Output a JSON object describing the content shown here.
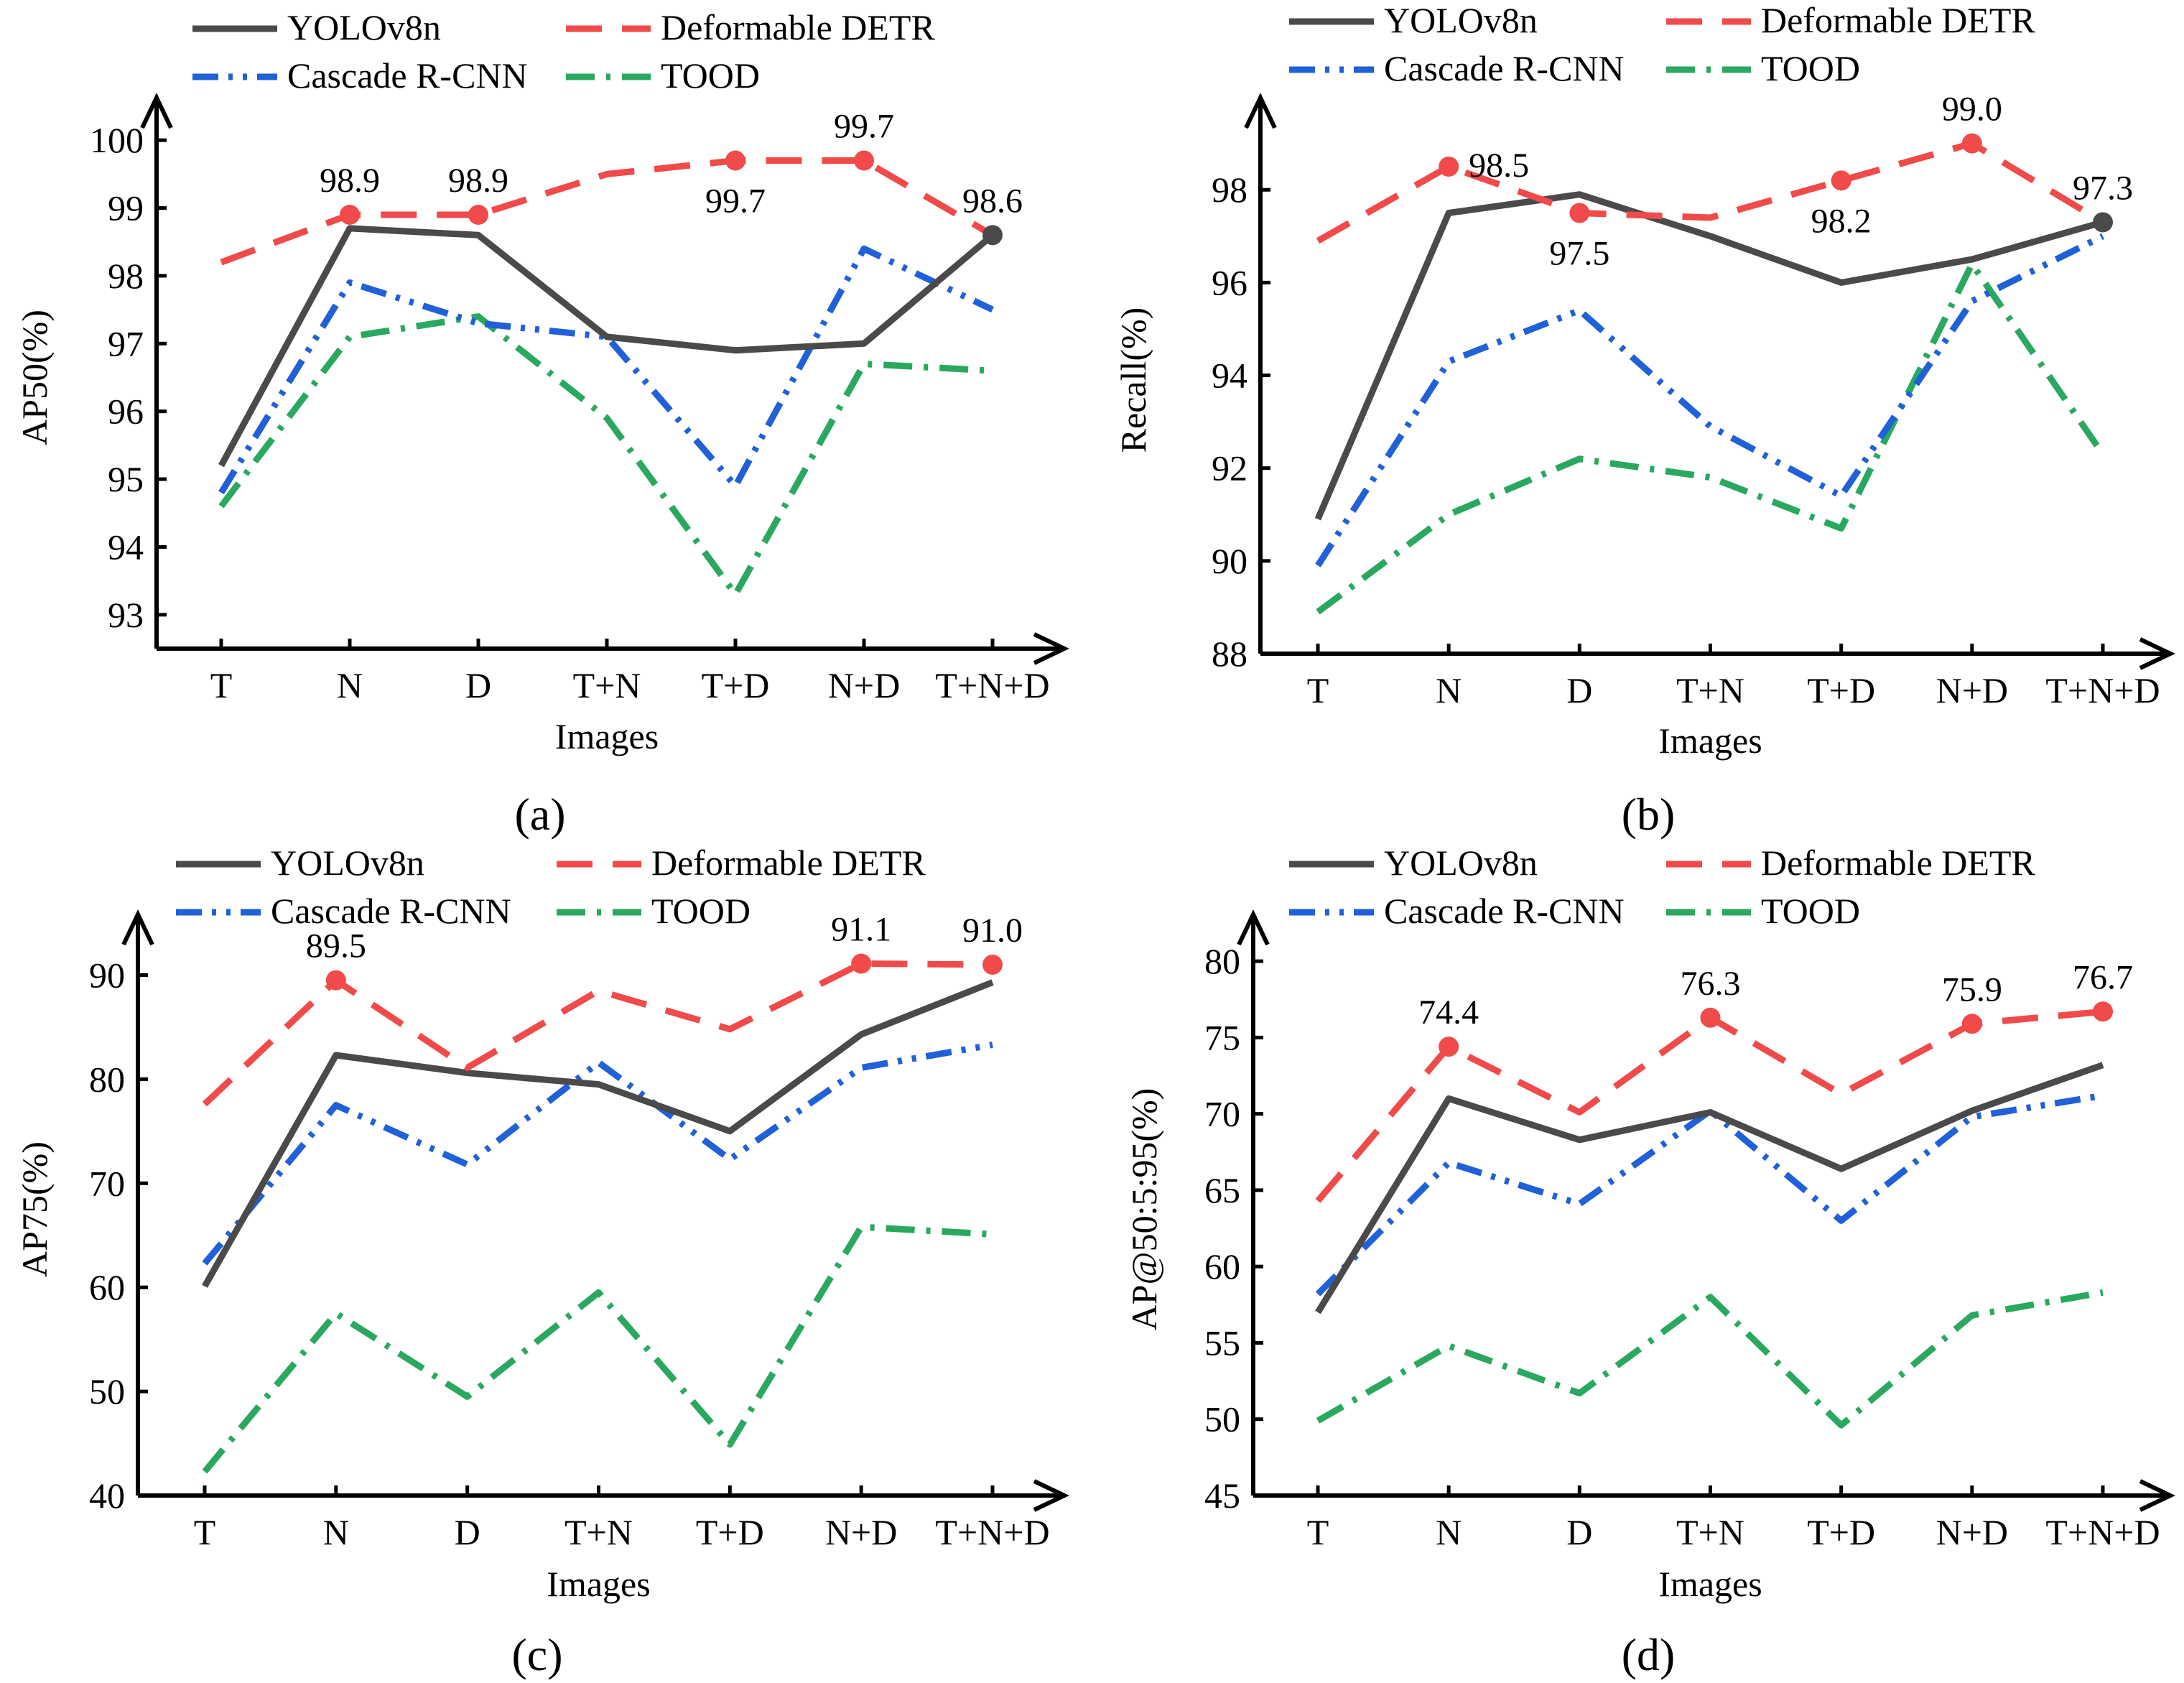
{
  "styles": {
    "YOLOv8n": {
      "color": "#4a4a4a",
      "dash": ""
    },
    "Deformable DETR": {
      "color": "#f04a4a",
      "dash": "50 28"
    },
    "Cascade R-CNN": {
      "color": "#2060d8",
      "dash": "36 14 6 14 6 14"
    },
    "TOOD": {
      "color": "#2aa860",
      "dash": "40 16 6 16"
    }
  },
  "chart_data": [
    {
      "type": "line",
      "panel_label": "(a)",
      "ylabel": "AP50(%)",
      "xlabel": "Images",
      "categories": [
        "T",
        "N",
        "D",
        "T+N",
        "T+D",
        "N+D",
        "T+N+D"
      ],
      "yticks": [
        93,
        94,
        95,
        96,
        97,
        98,
        99,
        100
      ],
      "ylim": [
        92.5,
        100.5
      ],
      "legend": [
        "YOLOv8n",
        "Deformable DETR",
        "Cascade R-CNN",
        "TOOD"
      ],
      "series": [
        {
          "name": "YOLOv8n",
          "values": [
            95.2,
            98.7,
            98.6,
            97.1,
            96.9,
            97.0,
            98.6
          ]
        },
        {
          "name": "Deformable DETR",
          "values": [
            98.2,
            98.9,
            98.9,
            99.5,
            99.7,
            99.7,
            98.6
          ]
        },
        {
          "name": "Cascade R-CNN",
          "values": [
            94.8,
            97.9,
            97.3,
            97.1,
            94.9,
            98.4,
            97.5
          ]
        },
        {
          "name": "TOOD",
          "values": [
            94.6,
            97.1,
            97.4,
            95.9,
            93.3,
            96.7,
            96.6
          ]
        }
      ],
      "markers": [
        {
          "series": "Deformable DETR",
          "index": 1,
          "label": "98.9",
          "pos": "above"
        },
        {
          "series": "Deformable DETR",
          "index": 2,
          "label": "98.9",
          "pos": "above"
        },
        {
          "series": "Deformable DETR",
          "index": 4,
          "label": "99.7",
          "pos": "below"
        },
        {
          "series": "Deformable DETR",
          "index": 5,
          "label": "99.7",
          "pos": "above"
        },
        {
          "series": "YOLOv8n",
          "index": 6,
          "label": "98.6",
          "pos": "above"
        }
      ]
    },
    {
      "type": "line",
      "panel_label": "(b)",
      "ylabel": "Recall(%)",
      "xlabel": "Images",
      "categories": [
        "T",
        "N",
        "D",
        "T+N",
        "T+D",
        "N+D",
        "T+N+D"
      ],
      "yticks": [
        88,
        90,
        92,
        94,
        96,
        98
      ],
      "ylim": [
        88,
        99.8
      ],
      "legend": [
        "YOLOv8n",
        "Deformable DETR",
        "Cascade R-CNN",
        "TOOD"
      ],
      "series": [
        {
          "name": "YOLOv8n",
          "values": [
            90.9,
            97.5,
            97.9,
            97.0,
            96.0,
            96.5,
            97.3
          ]
        },
        {
          "name": "Deformable DETR",
          "values": [
            96.9,
            98.5,
            97.5,
            97.4,
            98.2,
            99.0,
            97.3
          ]
        },
        {
          "name": "Cascade R-CNN",
          "values": [
            89.9,
            94.3,
            95.4,
            92.9,
            91.4,
            95.6,
            97.0
          ]
        },
        {
          "name": "TOOD",
          "values": [
            88.9,
            91.0,
            92.2,
            91.8,
            90.7,
            96.4,
            92.3
          ]
        }
      ],
      "markers": [
        {
          "series": "Deformable DETR",
          "index": 1,
          "label": "98.5",
          "pos": "right"
        },
        {
          "series": "Deformable DETR",
          "index": 2,
          "label": "97.5",
          "pos": "below"
        },
        {
          "series": "Deformable DETR",
          "index": 4,
          "label": "98.2",
          "pos": "below"
        },
        {
          "series": "Deformable DETR",
          "index": 5,
          "label": "99.0",
          "pos": "above"
        },
        {
          "series": "YOLOv8n",
          "index": 6,
          "label": "97.3",
          "pos": "above"
        }
      ]
    },
    {
      "type": "line",
      "panel_label": "(c)",
      "ylabel": "AP75(%)",
      "xlabel": "Images",
      "categories": [
        "T",
        "N",
        "D",
        "T+N",
        "T+D",
        "N+D",
        "T+N+D"
      ],
      "yticks": [
        40,
        50,
        60,
        70,
        80,
        90
      ],
      "ylim": [
        40,
        95
      ],
      "legend": [
        "YOLOv8n",
        "Deformable DETR",
        "Cascade R-CNN",
        "TOOD"
      ],
      "series": [
        {
          "name": "YOLOv8n",
          "values": [
            60.1,
            82.3,
            80.6,
            79.5,
            75.0,
            84.3,
            89.3
          ]
        },
        {
          "name": "Deformable DETR",
          "values": [
            77.6,
            89.5,
            81.1,
            88.5,
            84.8,
            91.1,
            91.0
          ]
        },
        {
          "name": "Cascade R-CNN",
          "values": [
            62.3,
            77.5,
            71.8,
            81.6,
            72.3,
            81.1,
            83.3
          ]
        },
        {
          "name": "TOOD",
          "values": [
            42.3,
            57.5,
            49.5,
            59.5,
            44.9,
            65.8,
            65.1
          ]
        }
      ],
      "markers": [
        {
          "series": "Deformable DETR",
          "index": 1,
          "label": "89.5",
          "pos": "above"
        },
        {
          "series": "Deformable DETR",
          "index": 5,
          "label": "91.1",
          "pos": "above"
        },
        {
          "series": "Deformable DETR",
          "index": 6,
          "label": "91.0",
          "pos": "above"
        }
      ]
    },
    {
      "type": "line",
      "panel_label": "(d)",
      "ylabel": "AP@50:5:95(%)",
      "xlabel": "Images",
      "categories": [
        "T",
        "N",
        "D",
        "T+N",
        "T+D",
        "N+D",
        "T+N+D"
      ],
      "yticks": [
        45,
        50,
        55,
        60,
        65,
        70,
        75,
        80
      ],
      "ylim": [
        45,
        82.5
      ],
      "legend": [
        "YOLOv8n",
        "Deformable DETR",
        "Cascade R-CNN",
        "TOOD"
      ],
      "series": [
        {
          "name": "YOLOv8n",
          "values": [
            57.0,
            71.0,
            68.3,
            70.1,
            66.4,
            70.2,
            73.2
          ]
        },
        {
          "name": "Deformable DETR",
          "values": [
            64.3,
            74.4,
            70.1,
            76.3,
            71.3,
            75.9,
            76.7
          ]
        },
        {
          "name": "Cascade R-CNN",
          "values": [
            58.2,
            66.8,
            64.1,
            70.2,
            63.0,
            69.8,
            71.2
          ]
        },
        {
          "name": "TOOD",
          "values": [
            49.9,
            54.8,
            51.7,
            58.0,
            49.6,
            56.8,
            58.3
          ]
        }
      ],
      "markers": [
        {
          "series": "Deformable DETR",
          "index": 1,
          "label": "74.4",
          "pos": "above"
        },
        {
          "series": "Deformable DETR",
          "index": 3,
          "label": "76.3",
          "pos": "above"
        },
        {
          "series": "Deformable DETR",
          "index": 5,
          "label": "75.9",
          "pos": "above"
        },
        {
          "series": "Deformable DETR",
          "index": 6,
          "label": "76.7",
          "pos": "above"
        }
      ]
    }
  ]
}
